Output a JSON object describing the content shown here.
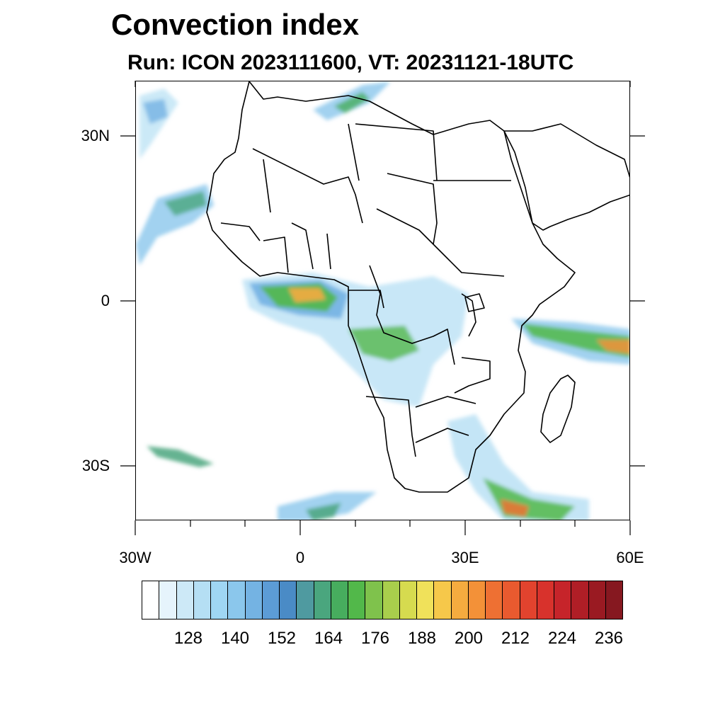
{
  "title": "Convection index",
  "subtitle": "Run: ICON 2023111600,  VT: 20231121-18UTC",
  "lat_labels": [
    {
      "text": "30N",
      "lat": 30
    },
    {
      "text": "0",
      "lat": 0
    },
    {
      "text": "30S",
      "lat": -30
    }
  ],
  "lon_labels": [
    {
      "text": "30W",
      "lon": -30
    },
    {
      "text": "0",
      "lon": 0
    },
    {
      "text": "30E",
      "lon": 30
    },
    {
      "text": "60E",
      "lon": 60
    }
  ],
  "map_extent": {
    "lon_min": -30,
    "lon_max": 60,
    "lat_min": -40,
    "lat_max": 40
  },
  "colorbar": {
    "labels": [
      "128",
      "140",
      "152",
      "164",
      "176",
      "188",
      "200",
      "212",
      "224",
      "236"
    ],
    "colors": [
      "#ffffff",
      "#e6f4fc",
      "#cde9f7",
      "#b5dff4",
      "#9fd6f3",
      "#8bc7ec",
      "#74b3e3",
      "#5c9cd6",
      "#4a8bc6",
      "#4f9aa0",
      "#4aa67e",
      "#47ad5e",
      "#52b84a",
      "#7fc24c",
      "#a9ce4c",
      "#d6db4f",
      "#f0e15a",
      "#f6c84a",
      "#f5ab3f",
      "#f39138",
      "#ee7033",
      "#e95a2f",
      "#e2432e",
      "#d8322c",
      "#c6242a",
      "#b01e26",
      "#9a1a22",
      "#861820"
    ]
  }
}
